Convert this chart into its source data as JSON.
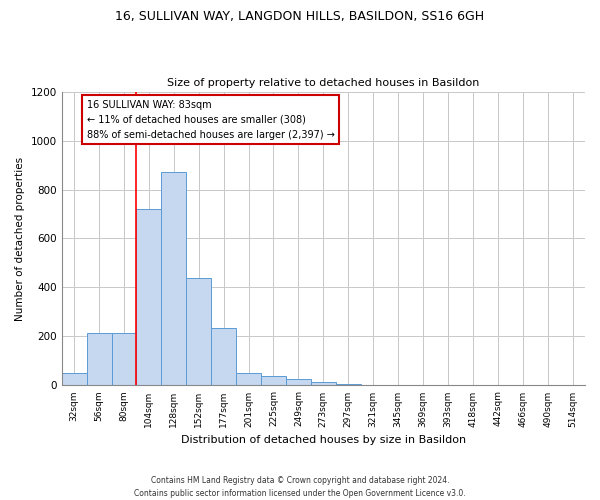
{
  "title1": "16, SULLIVAN WAY, LANGDON HILLS, BASILDON, SS16 6GH",
  "title2": "Size of property relative to detached houses in Basildon",
  "xlabel": "Distribution of detached houses by size in Basildon",
  "ylabel": "Number of detached properties",
  "categories": [
    "32sqm",
    "56sqm",
    "80sqm",
    "104sqm",
    "128sqm",
    "152sqm",
    "177sqm",
    "201sqm",
    "225sqm",
    "249sqm",
    "273sqm",
    "297sqm",
    "321sqm",
    "345sqm",
    "369sqm",
    "393sqm",
    "418sqm",
    "442sqm",
    "466sqm",
    "490sqm",
    "514sqm"
  ],
  "values": [
    50,
    215,
    215,
    720,
    870,
    440,
    235,
    50,
    40,
    25,
    15,
    5,
    0,
    0,
    0,
    0,
    0,
    0,
    0,
    0,
    0
  ],
  "bar_color": "#c5d8f0",
  "bar_edge_color": "#5b9bd5",
  "annotation_text": "16 SULLIVAN WAY: 83sqm\n← 11% of detached houses are smaller (308)\n88% of semi-detached houses are larger (2,397) →",
  "annotation_box_color": "white",
  "annotation_box_edge_color": "#cc0000",
  "ylim": [
    0,
    1200
  ],
  "yticks": [
    0,
    200,
    400,
    600,
    800,
    1000,
    1200
  ],
  "footer": "Contains HM Land Registry data © Crown copyright and database right 2024.\nContains public sector information licensed under the Open Government Licence v3.0.",
  "bg_color": "white",
  "grid_color": "#c8c8c8",
  "red_line_idx": 2.5
}
